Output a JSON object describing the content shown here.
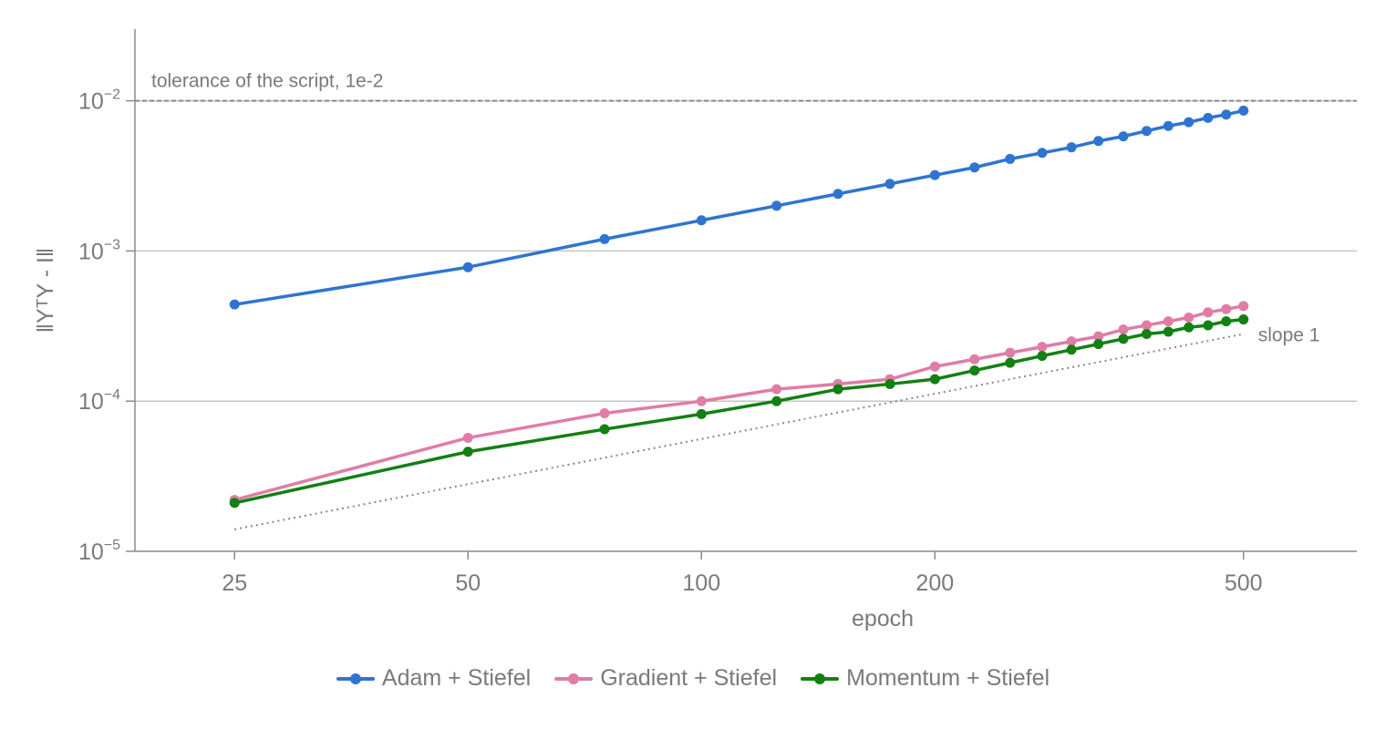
{
  "chart_data": {
    "type": "line",
    "xlabel": "epoch",
    "ylabel": "‖YᵀY - I‖",
    "xscale": "log",
    "yscale": "log",
    "xlim": [
      18.6,
      700
    ],
    "ylim": [
      1e-05,
      0.03
    ],
    "xticks": [
      25,
      50,
      100,
      200,
      500
    ],
    "xtick_labels": [
      "25",
      "50",
      "100",
      "200",
      "500"
    ],
    "yticks": [
      1e-05,
      0.0001,
      0.001,
      0.01
    ],
    "ytick_labels": [
      {
        "base": "10",
        "exp": "−5"
      },
      {
        "base": "10",
        "exp": "−4"
      },
      {
        "base": "10",
        "exp": "−3"
      },
      {
        "base": "10",
        "exp": "−2"
      }
    ],
    "grid": "horizontal",
    "legend_position": "bottom-center",
    "x": [
      25,
      50,
      75,
      100,
      125,
      150,
      175,
      200,
      225,
      250,
      275,
      300,
      325,
      350,
      375,
      400,
      425,
      450,
      475,
      500
    ],
    "series": [
      {
        "name": "Adam + Stiefel",
        "color": "#2f74d0",
        "values": [
          0.00044,
          0.00078,
          0.0012,
          0.0016,
          0.002,
          0.0024,
          0.0028,
          0.0032,
          0.0036,
          0.0041,
          0.0045,
          0.0049,
          0.0054,
          0.0058,
          0.0063,
          0.0068,
          0.0072,
          0.0077,
          0.0081,
          0.0086
        ]
      },
      {
        "name": "Gradient + Stiefel",
        "color": "#e07ca6",
        "values": [
          2.2e-05,
          5.7e-05,
          8.3e-05,
          0.0001,
          0.00012,
          0.00013,
          0.00014,
          0.00017,
          0.00019,
          0.00021,
          0.00023,
          0.00025,
          0.00027,
          0.0003,
          0.00032,
          0.00034,
          0.00036,
          0.00039,
          0.00041,
          0.00043
        ]
      },
      {
        "name": "Momentum + Stiefel",
        "color": "#128012",
        "values": [
          2.1e-05,
          4.6e-05,
          6.5e-05,
          8.2e-05,
          0.0001,
          0.00012,
          0.00013,
          0.00014,
          0.00016,
          0.00018,
          0.0002,
          0.00022,
          0.00024,
          0.00026,
          0.00028,
          0.00029,
          0.00031,
          0.00032,
          0.00034,
          0.00035
        ]
      }
    ],
    "annotations": [
      {
        "type": "hline",
        "y": 0.01,
        "label": "tolerance of the script, 1e-2",
        "style": "dashed",
        "color": "#888888"
      },
      {
        "type": "reference_line",
        "x": [
          25,
          500
        ],
        "y": [
          1.4e-05,
          0.00028
        ],
        "label": "slope 1",
        "style": "dotted",
        "color": "#888888"
      }
    ]
  }
}
